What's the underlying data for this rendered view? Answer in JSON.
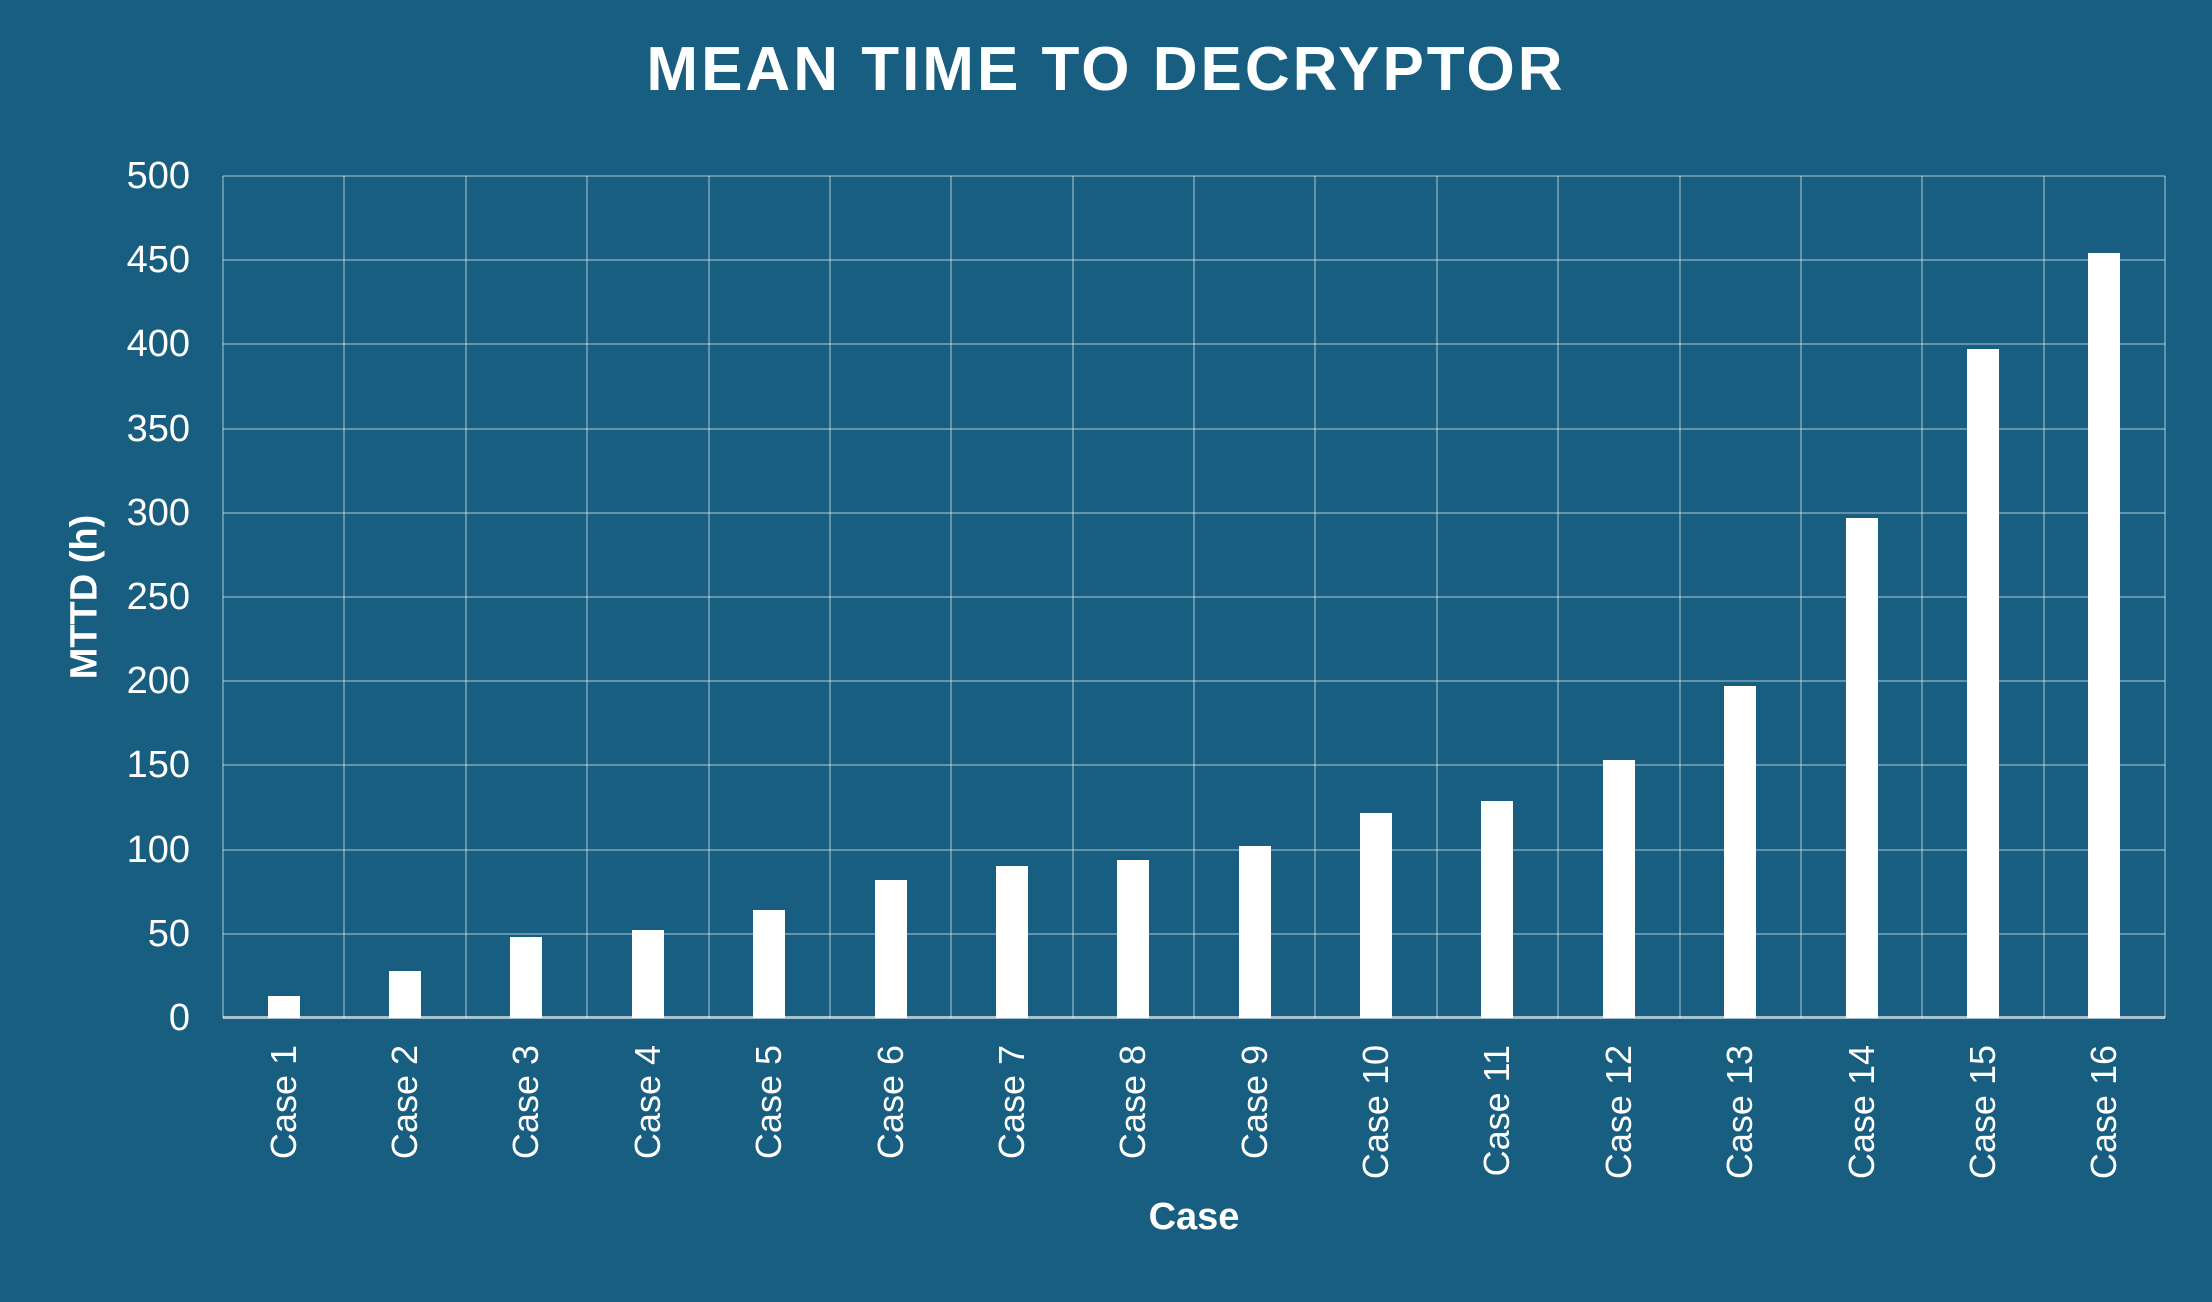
{
  "chart_data": {
    "type": "bar",
    "title": "MEAN TIME TO DECRYPTOR",
    "xlabel": "Case",
    "ylabel": "MTTD (h)",
    "categories": [
      "Case 1",
      "Case 2",
      "Case 3",
      "Case 4",
      "Case 5",
      "Case 6",
      "Case 7",
      "Case 8",
      "Case 9",
      "Case 10",
      "Case 11",
      "Case 12",
      "Case 13",
      "Case 14",
      "Case 15",
      "Case 16"
    ],
    "values": [
      13,
      28,
      48,
      52,
      64,
      82,
      90,
      94,
      102,
      122,
      129,
      153,
      197,
      297,
      397,
      454
    ],
    "ylim": [
      0,
      500
    ],
    "ytick_step": 50,
    "yticks": [
      "0",
      "50",
      "100",
      "150",
      "200",
      "250",
      "300",
      "350",
      "400",
      "450",
      "500"
    ],
    "grid": "both-major",
    "legend_position": "none",
    "colors": {
      "background": "#175E80",
      "bar": "#FFFFFF",
      "text": "#FFFFFF",
      "gridline": "rgba(255,255,255,0.33)",
      "axis_line": "rgba(255,255,255,0.62)"
    }
  }
}
